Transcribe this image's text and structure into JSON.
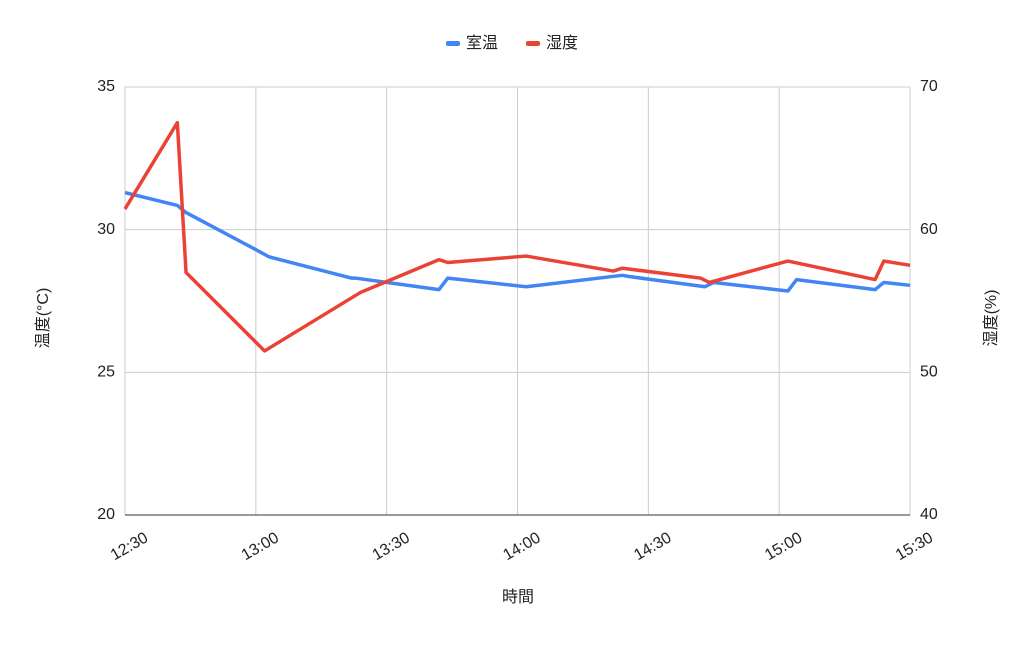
{
  "chart_data": {
    "type": "line",
    "x_label": "時間",
    "y_label": "温度(°C)",
    "y2_label": "湿度(%)",
    "xlim": [
      "12:30",
      "15:30"
    ],
    "xticks": [
      "12:30",
      "13:00",
      "13:30",
      "14:00",
      "14:30",
      "15:00",
      "15:30"
    ],
    "ylim": [
      20,
      35
    ],
    "yticks": [
      20,
      25,
      30,
      35
    ],
    "y2lim": [
      40,
      70
    ],
    "y2ticks": [
      40,
      50,
      60,
      70
    ],
    "grid": true,
    "legend": "top",
    "series": [
      {
        "name": "室温",
        "color": "#4285f4",
        "x": [
          "12:30",
          "12:42",
          "12:44",
          "13:00",
          "13:03",
          "13:22",
          "13:23",
          "13:42",
          "13:44",
          "14:02",
          "14:24",
          "14:26",
          "14:43",
          "14:45",
          "15:02",
          "15:04",
          "15:22",
          "15:24",
          "15:30"
        ],
        "values": [
          31.3,
          30.85,
          30.6,
          29.3,
          29.05,
          28.3,
          28.3,
          27.9,
          28.3,
          28.0,
          28.4,
          28.35,
          28.0,
          28.15,
          27.85,
          28.25,
          27.9,
          28.15,
          28.05
        ]
      },
      {
        "name": "湿度",
        "color": "#ea4335",
        "axis": "y2",
        "x": [
          "12:30",
          "12:42",
          "12:44",
          "13:02",
          "13:24",
          "13:42",
          "13:44",
          "14:02",
          "14:22",
          "14:24",
          "14:42",
          "14:44",
          "15:02",
          "15:22",
          "15:24",
          "15:30"
        ],
        "values": [
          61.45,
          67.5,
          57.0,
          51.5,
          55.6,
          57.9,
          57.7,
          58.15,
          57.1,
          57.3,
          56.6,
          56.3,
          57.8,
          56.5,
          57.8,
          57.5
        ]
      }
    ]
  }
}
